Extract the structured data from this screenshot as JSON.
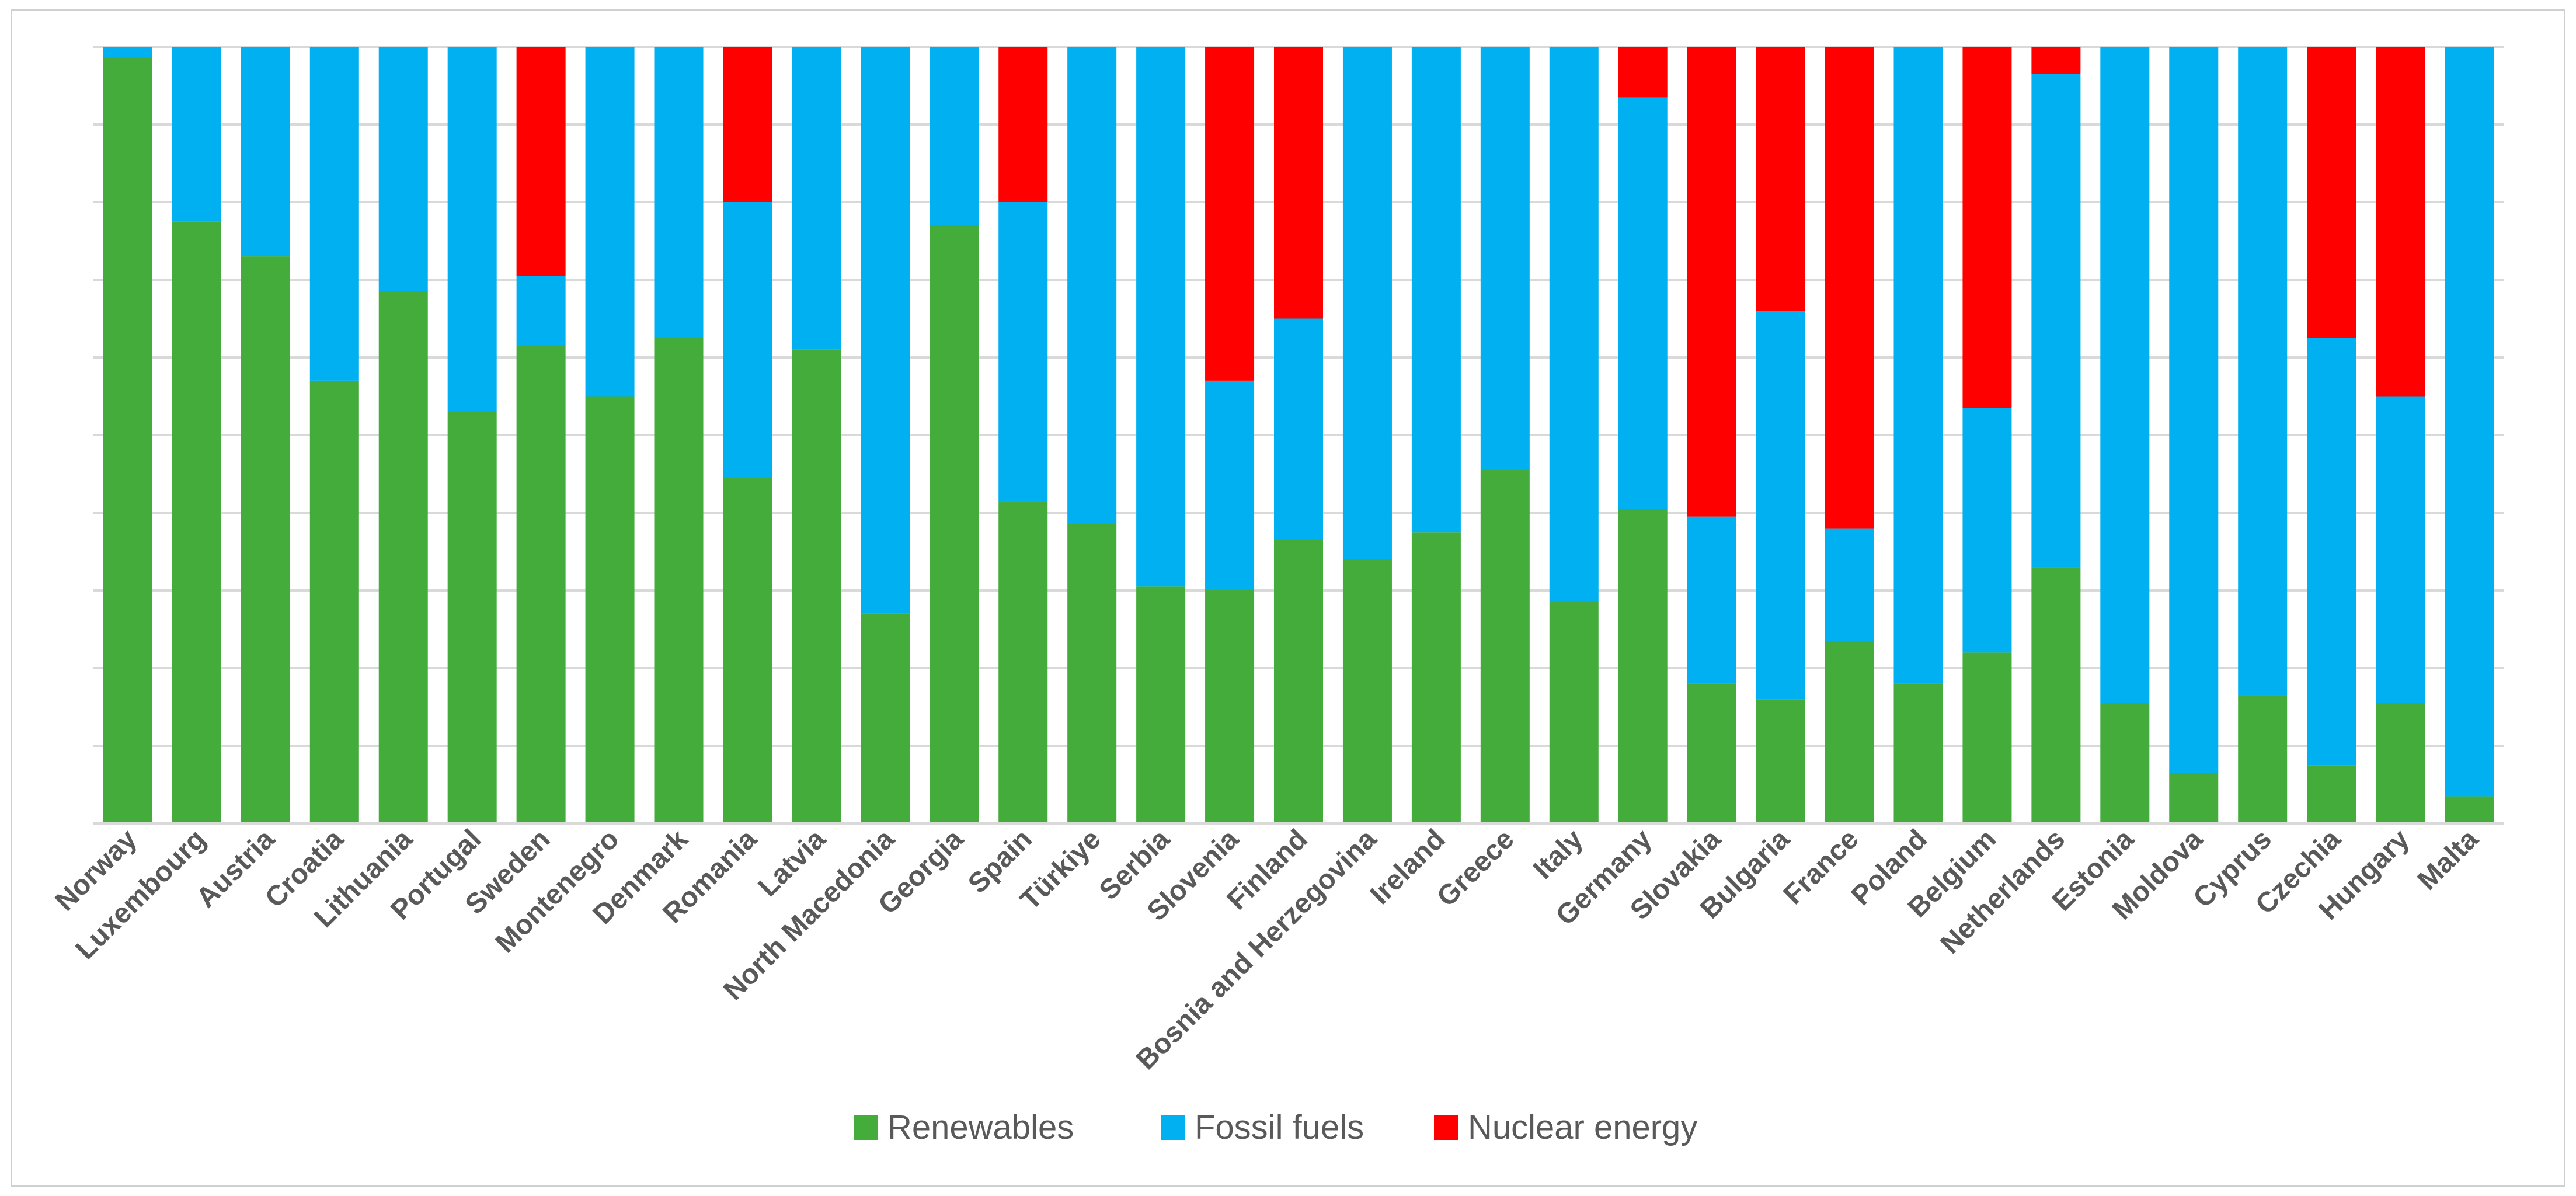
{
  "chart_data": {
    "type": "bar",
    "stacked": true,
    "title": "",
    "xlabel": "",
    "ylabel": "",
    "ylim": [
      0,
      100
    ],
    "grid": true,
    "legend_position": "bottom",
    "categories": [
      "Norway",
      "Luxembourg",
      "Austria",
      "Croatia",
      "Lithuania",
      "Portugal",
      "Sweden",
      "Montenegro",
      "Denmark",
      "Romania",
      "Latvia",
      "North Macedonia",
      "Georgia",
      "Spain",
      "Türkiye",
      "Serbia",
      "Slovenia",
      "Finland",
      "Bosnia and Herzegovina",
      "Ireland",
      "Greece",
      "Italy",
      "Germany",
      "Slovakia",
      "Bulgaria",
      "France",
      "Poland",
      "Belgium",
      "Netherlands",
      "Estonia",
      "Moldova",
      "Cyprus",
      "Czechia",
      "Hungary",
      "Malta"
    ],
    "series": [
      {
        "name": "Renewables",
        "color": "#43ac3b",
        "values": [
          98.5,
          77.5,
          73,
          57,
          68.5,
          53,
          61.5,
          55,
          62.5,
          44.5,
          61,
          27,
          77,
          41.5,
          38.5,
          30.5,
          30,
          36.5,
          34,
          37.5,
          45.5,
          28.5,
          40.5,
          18,
          16,
          23.5,
          18,
          22,
          33,
          15.5,
          6.5,
          16.5,
          7.5,
          15.5,
          3.5
        ]
      },
      {
        "name": "Fossil fuels",
        "color": "#00b0f0",
        "values": [
          1.5,
          22.5,
          27,
          43,
          31.5,
          47,
          9,
          45,
          37.5,
          35.5,
          39,
          73,
          23,
          38.5,
          61.5,
          69.5,
          27,
          28.5,
          66,
          62.5,
          54.5,
          71.5,
          53,
          21.5,
          50,
          14.5,
          82,
          31.5,
          63.5,
          84.5,
          93.5,
          83.5,
          55,
          39.5,
          96.5
        ]
      },
      {
        "name": "Nuclear energy",
        "color": "#ff0000",
        "values": [
          0,
          0,
          0,
          0,
          0,
          0,
          29.5,
          0,
          0,
          20,
          0,
          0,
          0,
          20,
          0,
          0,
          43,
          35,
          0,
          0,
          0,
          0,
          6.5,
          60.5,
          34,
          62,
          0,
          46.5,
          3.5,
          0,
          0,
          0,
          37.5,
          45,
          0
        ]
      }
    ]
  }
}
